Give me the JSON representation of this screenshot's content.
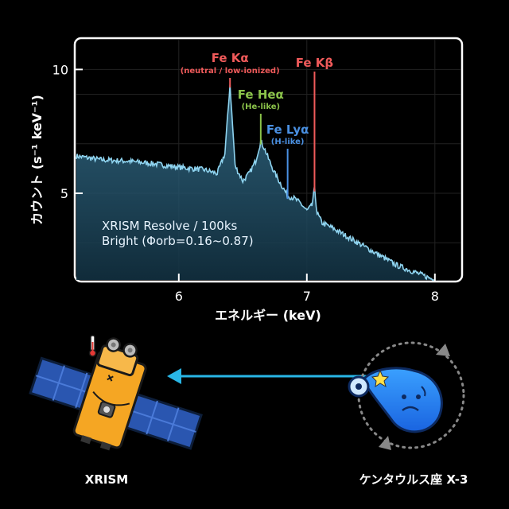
{
  "chart_data": {
    "type": "line",
    "title": "",
    "xlabel": "エネルギー (keV)",
    "ylabel": "カウント (s⁻¹ keV⁻¹)",
    "xlim": [
      5.2,
      8.2
    ],
    "ylim": [
      1.5,
      11.2
    ],
    "xticks": [
      6,
      7,
      8
    ],
    "yticks": [
      5,
      10
    ],
    "grid": true,
    "series": [
      {
        "x": [
          5.2,
          5.4,
          5.6,
          5.8,
          6.0,
          6.2,
          6.3,
          6.36,
          6.4,
          6.44,
          6.5,
          6.55,
          6.6,
          6.64,
          6.67,
          6.7,
          6.75,
          6.8,
          6.85,
          6.9,
          6.95,
          7.0,
          7.04,
          7.06,
          7.08,
          7.12,
          7.2,
          7.3,
          7.4,
          7.5,
          7.6,
          7.7,
          7.8,
          7.9,
          8.0
        ],
        "values": [
          6.5,
          6.35,
          6.3,
          6.2,
          6.05,
          5.95,
          5.8,
          6.6,
          9.4,
          6.1,
          5.5,
          5.8,
          6.3,
          7.1,
          6.8,
          6.4,
          5.8,
          5.35,
          4.9,
          4.8,
          4.6,
          4.3,
          4.5,
          5.2,
          4.2,
          3.8,
          3.6,
          3.3,
          3.0,
          2.7,
          2.4,
          2.1,
          1.9,
          1.7,
          1.5
        ]
      }
    ],
    "lines": [
      {
        "x": 6.4,
        "label": "Fe Kα",
        "sublabel": "(neutral / low-ionized)",
        "color": "#ef5a5a"
      },
      {
        "x": 6.64,
        "label": "Fe Heα",
        "sublabel": "(He-like)",
        "color": "#8bc34a"
      },
      {
        "x": 6.85,
        "label": "Fe Lyα",
        "sublabel": "(H-like)",
        "color": "#4a90e2"
      },
      {
        "x": 7.06,
        "label": "Fe Kβ",
        "sublabel": "",
        "color": "#ef5a5a"
      }
    ],
    "annotation": [
      "XRISM Resolve / 100ks",
      "Bright (Φorb=0.16~0.87)"
    ],
    "line_color": "#8fd4f0"
  },
  "labels": {
    "satellite": "XRISM",
    "source": "ケンタウルス座 X-3"
  }
}
